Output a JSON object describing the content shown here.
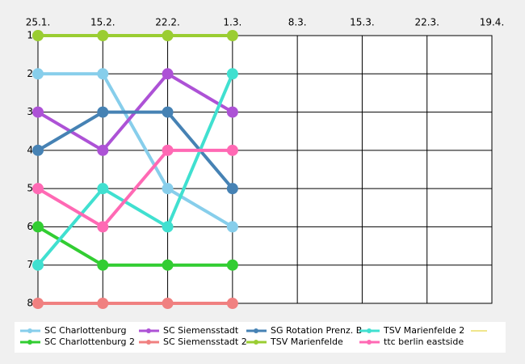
{
  "chart_data": {
    "type": "line",
    "categories": [
      "25.1.",
      "15.2.",
      "22.2.",
      "1.3.",
      "8.3.",
      "15.3.",
      "22.3.",
      "19.4."
    ],
    "ylim": [
      1,
      8
    ],
    "yticks": [
      1,
      2,
      3,
      4,
      5,
      6,
      7,
      8
    ],
    "y_inverted": true,
    "grid": true,
    "series": [
      {
        "name": "SC Charlottenburg",
        "color": "#87ceeb",
        "values": [
          2,
          2,
          5,
          6,
          null,
          null,
          null,
          null
        ]
      },
      {
        "name": "SC Charlottenburg 2",
        "color": "#32cd32",
        "values": [
          6,
          7,
          7,
          7,
          null,
          null,
          null,
          null
        ]
      },
      {
        "name": "SC Siemensstadt",
        "color": "#ad52d6",
        "values": [
          3,
          4,
          2,
          3,
          null,
          null,
          null,
          null
        ]
      },
      {
        "name": "SC Siemensstadt 2",
        "color": "#f08080",
        "values": [
          8,
          8,
          8,
          8,
          null,
          null,
          null,
          null
        ]
      },
      {
        "name": "SG Rotation Prenz. B",
        "color": "#4682b4",
        "values": [
          4,
          3,
          3,
          5,
          null,
          null,
          null,
          null
        ]
      },
      {
        "name": "TSV Marienfelde",
        "color": "#9acd32",
        "values": [
          1,
          1,
          1,
          1,
          null,
          null,
          null,
          null
        ]
      },
      {
        "name": "TSV Marienfelde 2",
        "color": "#40e0d0",
        "values": [
          7,
          5,
          6,
          2,
          null,
          null,
          null,
          null
        ]
      },
      {
        "name": "ttc berlin eastside",
        "color": "#ff69b4",
        "values": [
          5,
          6,
          4,
          4,
          null,
          null,
          null,
          null
        ]
      }
    ]
  }
}
